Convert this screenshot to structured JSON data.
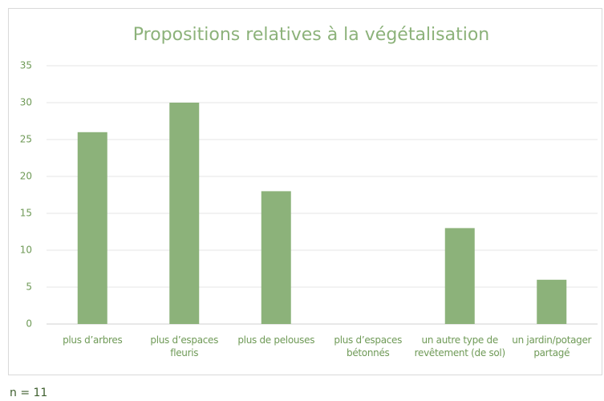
{
  "chart_data": {
    "type": "bar",
    "title": "Propositions relatives à la végétalisation",
    "categories": [
      "plus d’arbres",
      "plus d’espaces fleuris",
      "plus de pelouses",
      "plus d’espaces bétonnés",
      "un autre type de revêtement (de sol)",
      "un jardin/potager partagé"
    ],
    "values": [
      26,
      30,
      18,
      0,
      13,
      6
    ],
    "color": "#8cb27a",
    "ylim": [
      0,
      35
    ],
    "yticks": [
      0,
      5,
      10,
      15,
      20,
      25,
      30,
      35
    ],
    "grid": true,
    "annotation": "n = 11"
  }
}
